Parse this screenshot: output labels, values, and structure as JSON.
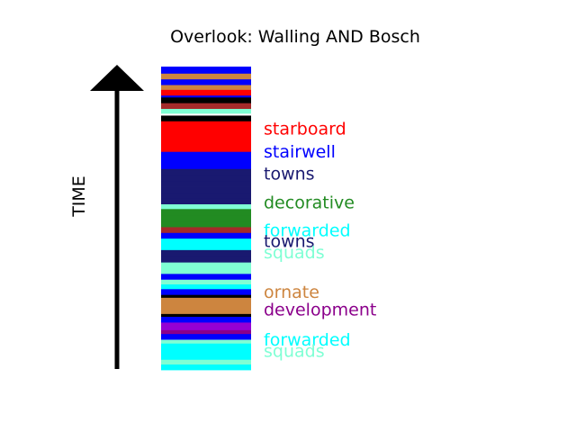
{
  "chart_data": {
    "type": "bar",
    "title": "Overlook: Walling AND Bosch",
    "ylabel": "TIME",
    "bands": [
      {
        "color": "#00ffff",
        "weight": 6
      },
      {
        "color": "#7fffd4",
        "weight": 5
      },
      {
        "color": "#00ffff",
        "weight": 6
      },
      {
        "color": "#00ffff",
        "weight": 6
      },
      {
        "color": "#00ffff",
        "weight": 5
      },
      {
        "color": "#7fffd4",
        "weight": 4
      },
      {
        "color": "#0000ff",
        "weight": 6
      },
      {
        "color": "#8b008b",
        "weight": 4
      },
      {
        "color": "#9400d3",
        "weight": 8
      },
      {
        "color": "#0000ff",
        "weight": 6
      },
      {
        "color": "#000000",
        "weight": 3
      },
      {
        "color": "#cd853f",
        "weight": 17
      },
      {
        "color": "#000000",
        "weight": 3
      },
      {
        "color": "#0000ff",
        "weight": 6
      },
      {
        "color": "#00ffff",
        "weight": 5
      },
      {
        "color": "#7fffd4",
        "weight": 5
      },
      {
        "color": "#0000ff",
        "weight": 6
      },
      {
        "color": "#7fffd4",
        "weight": 6
      },
      {
        "color": "#7fffd4",
        "weight": 6
      },
      {
        "color": "#191970",
        "weight": 6
      },
      {
        "color": "#191970",
        "weight": 7
      },
      {
        "color": "#00ffff",
        "weight": 6
      },
      {
        "color": "#00ffff",
        "weight": 6
      },
      {
        "color": "#0000ff",
        "weight": 6
      },
      {
        "color": "#a52a2a",
        "weight": 6
      },
      {
        "color": "#228b22",
        "weight": 6
      },
      {
        "color": "#228b22",
        "weight": 6
      },
      {
        "color": "#228b22",
        "weight": 7
      },
      {
        "color": "#7fffd4",
        "weight": 5
      },
      {
        "color": "#191970",
        "weight": 6
      },
      {
        "color": "#191970",
        "weight": 6
      },
      {
        "color": "#191970",
        "weight": 6
      },
      {
        "color": "#191970",
        "weight": 6
      },
      {
        "color": "#191970",
        "weight": 7
      },
      {
        "color": "#191970",
        "weight": 6
      },
      {
        "color": "#0000ff",
        "weight": 6
      },
      {
        "color": "#0000ff",
        "weight": 6
      },
      {
        "color": "#0000ff",
        "weight": 6
      },
      {
        "color": "#ff0000",
        "weight": 8
      },
      {
        "color": "#ff0000",
        "weight": 8
      },
      {
        "color": "#ff0000",
        "weight": 8
      },
      {
        "color": "#ff0000",
        "weight": 8
      },
      {
        "color": "#000000",
        "weight": 6
      },
      {
        "color": "#ffffff",
        "weight": 2
      },
      {
        "color": "#7fffd4",
        "weight": 5
      },
      {
        "color": "#a52a2a",
        "weight": 6
      },
      {
        "color": "#000000",
        "weight": 6
      },
      {
        "color": "#0000ff",
        "weight": 2
      },
      {
        "color": "#ff0000",
        "weight": 6
      },
      {
        "color": "#cd853f",
        "weight": 5
      },
      {
        "color": "#0000ff",
        "weight": 6
      },
      {
        "color": "#cd853f",
        "weight": 6
      },
      {
        "color": "#0000ff",
        "weight": 7
      }
    ],
    "labels": [
      {
        "text": "forwarded",
        "color": "#00ffff",
        "position": 0.097
      },
      {
        "text": "squads",
        "color": "#7fffd4",
        "position": 0.06
      },
      {
        "text": "ornate",
        "color": "#cd853f",
        "position": 0.254
      },
      {
        "text": "development",
        "color": "#8b008b",
        "position": 0.196
      },
      {
        "text": "forwarded",
        "color": "#00ffff",
        "position": 0.457
      },
      {
        "text": "towns",
        "color": "#191970",
        "position": 0.421
      },
      {
        "text": "squads",
        "color": "#7fffd4",
        "position": 0.385
      },
      {
        "text": "decorative",
        "color": "#228b22",
        "position": 0.549
      },
      {
        "text": "towns",
        "color": "#191970",
        "position": 0.644
      },
      {
        "text": "stairwell",
        "color": "#0000ff",
        "position": 0.717
      },
      {
        "text": "starboard",
        "color": "#ff0000",
        "position": 0.792
      }
    ]
  }
}
